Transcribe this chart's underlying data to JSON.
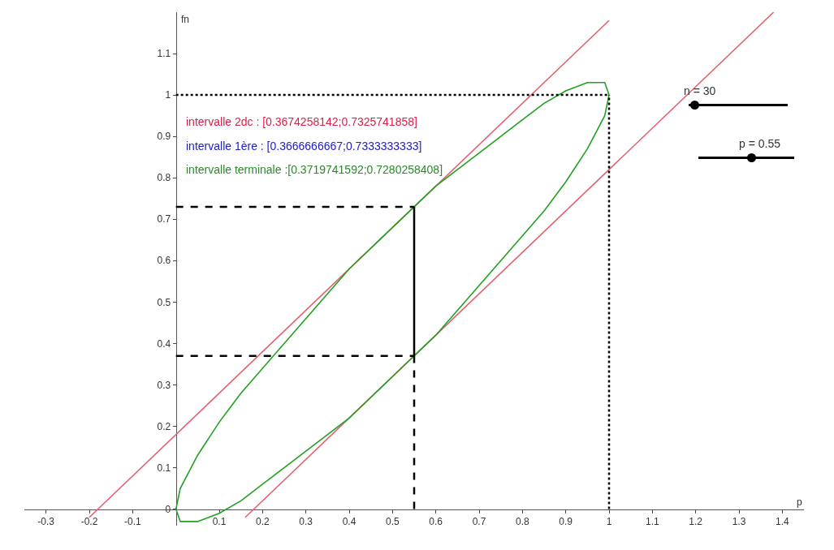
{
  "chart_data": {
    "type": "line",
    "xlabel": "p",
    "ylabel": "fn",
    "annotations": [
      "intervalle 2dc : [0.3674258142;0.7325741858]",
      "intervalle 1ère : [0.3666666667;0.7333333333]",
      "intervalle terminale :[0.3719741592;0.7280258408]",
      "n = 30",
      "p = 0.55"
    ],
    "xlim": [
      -0.35,
      1.45
    ],
    "ylim": [
      -0.04,
      1.2
    ],
    "xticks": [
      -0.3,
      -0.2,
      -0.1,
      0.1,
      0.2,
      0.3,
      0.4,
      0.5,
      0.6,
      0.7,
      0.8,
      0.9,
      1,
      1.1,
      1.2,
      1.3,
      1.4
    ],
    "yticks": [
      0,
      0.1,
      0.2,
      0.3,
      0.4,
      0.5,
      0.6,
      0.7,
      0.8,
      0.9,
      1,
      1.1
    ],
    "grid": false,
    "marker": "none",
    "series": [
      {
        "color": "#e06070",
        "line_style": "solid",
        "x": [
          -0.2,
          1.0
        ],
        "values": [
          -0.02,
          1.18
        ]
      },
      {
        "color": "#e06070",
        "line_style": "solid",
        "x": [
          0.16,
          1.38
        ],
        "values": [
          -0.02,
          1.2
        ]
      },
      {
        "color": "#22a022",
        "line_style": "solid",
        "x": [
          0,
          0.01,
          0.03,
          0.05,
          0.1,
          0.15,
          0.2,
          0.3,
          0.4,
          0.5,
          0.55,
          0.6,
          0.7,
          0.8,
          0.85,
          0.9,
          0.95,
          0.97,
          0.99,
          1
        ],
        "values": [
          0,
          0.05,
          0.09,
          0.13,
          0.21,
          0.28,
          0.34,
          0.46,
          0.58,
          0.68,
          0.73,
          0.78,
          0.86,
          0.94,
          0.98,
          1.01,
          1.03,
          1.03,
          1.03,
          1
        ]
      },
      {
        "color": "#22a022",
        "line_style": "solid",
        "x": [
          0,
          0.01,
          0.03,
          0.05,
          0.1,
          0.15,
          0.2,
          0.3,
          0.4,
          0.5,
          0.55,
          0.6,
          0.7,
          0.8,
          0.85,
          0.9,
          0.95,
          0.97,
          0.99,
          1
        ],
        "values": [
          0,
          -0.03,
          -0.03,
          -0.03,
          -0.01,
          0.02,
          0.06,
          0.14,
          0.22,
          0.32,
          0.37,
          0.42,
          0.54,
          0.66,
          0.72,
          0.79,
          0.87,
          0.91,
          0.95,
          1
        ]
      },
      {
        "color": "#000000",
        "line_style": "solid",
        "x": [
          0.55,
          0.55
        ],
        "values": [
          0.37,
          0.73
        ]
      },
      {
        "color": "#000000",
        "line_style": "dashed",
        "x": [
          0,
          0.55
        ],
        "values": [
          0.73,
          0.73
        ]
      },
      {
        "color": "#000000",
        "line_style": "dashed",
        "x": [
          0,
          0.55
        ],
        "values": [
          0.37,
          0.37
        ]
      },
      {
        "color": "#000000",
        "line_style": "dashed",
        "x": [
          0.55,
          0.55
        ],
        "values": [
          0,
          0.37
        ]
      },
      {
        "color": "#000000",
        "line_style": "dotted",
        "x": [
          0,
          1
        ],
        "values": [
          1,
          1
        ]
      },
      {
        "color": "#000000",
        "line_style": "dotted",
        "x": [
          1,
          1
        ],
        "values": [
          0,
          1
        ]
      }
    ]
  }
}
